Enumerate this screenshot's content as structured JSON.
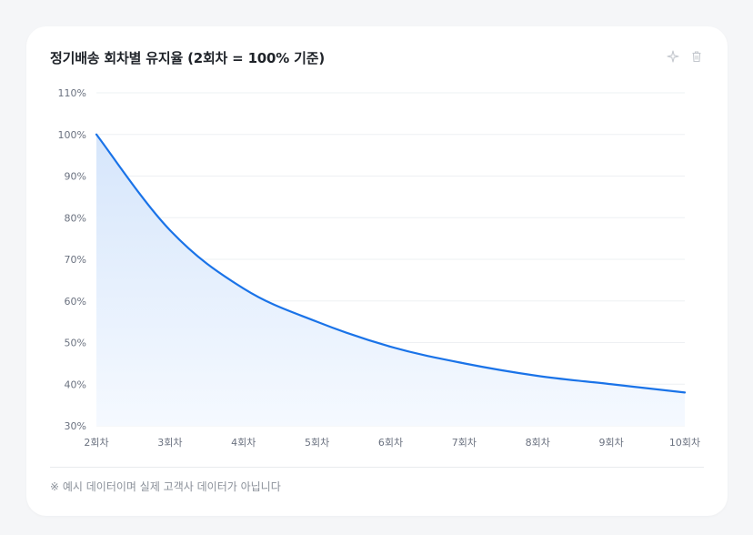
{
  "card": {
    "title": "정기배송 회차별 유지율 (2회차 = 100% 기준)",
    "actions": [
      {
        "icon": "sparkle-icon"
      },
      {
        "icon": "trash-icon"
      }
    ],
    "footnote": "※ 예시 데이터이며 실제 고객사 데이터가 아닙니다"
  },
  "colors": {
    "line": "#1a73e8",
    "area_top": "#d6e6fb",
    "area_bottom": "#f5f9ff",
    "grid": "#eef0f3"
  },
  "chart_data": {
    "type": "area",
    "title": "정기배송 회차별 유지율 (2회차 = 100% 기준)",
    "xlabel": "",
    "ylabel": "",
    "categories": [
      "2회차",
      "3회차",
      "4회차",
      "5회차",
      "6회차",
      "7회차",
      "8회차",
      "9회차",
      "10회차"
    ],
    "series": [
      {
        "values": [
          100,
          77,
          63,
          55,
          49,
          45,
          42,
          40,
          38
        ]
      }
    ],
    "ylim": [
      30,
      110
    ],
    "yticks": [
      "30%",
      "40%",
      "50%",
      "60%",
      "70%",
      "80%",
      "90%",
      "100%",
      "110%"
    ],
    "grid": true,
    "legend": "none"
  }
}
